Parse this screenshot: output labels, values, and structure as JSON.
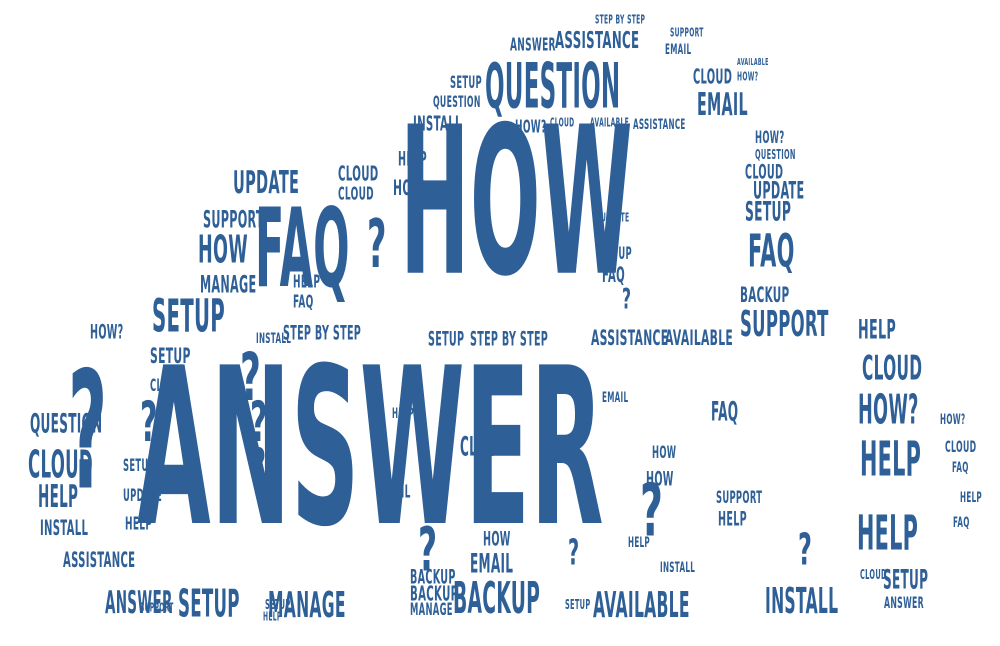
{
  "colors": {
    "text": "#2E5F96",
    "background": "#ffffff"
  },
  "words": [
    {
      "t": "ANSWER"
    },
    {
      "t": "HOW"
    },
    {
      "t": "QUESTION"
    },
    {
      "t": "FAQ"
    },
    {
      "t": "?"
    },
    {
      "t": "?"
    },
    {
      "t": "?"
    },
    {
      "t": "?"
    },
    {
      "t": "?"
    },
    {
      "t": "?"
    },
    {
      "t": "?"
    },
    {
      "t": "?"
    },
    {
      "t": "?"
    },
    {
      "t": "?"
    },
    {
      "t": "?"
    },
    {
      "t": "ASSISTANCE"
    },
    {
      "t": "ANSWER"
    },
    {
      "t": "STEP BY STEP"
    },
    {
      "t": "EMAIL"
    },
    {
      "t": "SUPPORT"
    },
    {
      "t": "EMAIL"
    },
    {
      "t": "CLOUD"
    },
    {
      "t": "HOW?"
    },
    {
      "t": "AVAILABLE"
    },
    {
      "t": "SETUP"
    },
    {
      "t": "QUESTION"
    },
    {
      "t": "INSTALL"
    },
    {
      "t": "HOW?"
    },
    {
      "t": "CLOUD"
    },
    {
      "t": "AVAILABLE"
    },
    {
      "t": "ASSISTANCE"
    },
    {
      "t": "HOW?"
    },
    {
      "t": "QUESTION"
    },
    {
      "t": "CLOUD"
    },
    {
      "t": "HELP"
    },
    {
      "t": "HOW"
    },
    {
      "t": "CLOUD"
    },
    {
      "t": "UPDATE"
    },
    {
      "t": "CLOUD"
    },
    {
      "t": "SETUP"
    },
    {
      "t": "SUPPORT"
    },
    {
      "t": "HOW"
    },
    {
      "t": "UPDATE"
    },
    {
      "t": "MANAGE"
    },
    {
      "t": "SETUP"
    },
    {
      "t": "HELP"
    },
    {
      "t": "FAQ"
    },
    {
      "t": "HOW?"
    },
    {
      "t": "SETUP"
    },
    {
      "t": "INSTALL"
    },
    {
      "t": "STEP BY STEP"
    },
    {
      "t": "SETUP"
    },
    {
      "t": "STEP BY STEP"
    },
    {
      "t": "ASSISTANCE"
    },
    {
      "t": "AVAILABLE"
    },
    {
      "t": "HOW?"
    },
    {
      "t": "UPDATE"
    },
    {
      "t": "SETUP"
    },
    {
      "t": "FAQ"
    },
    {
      "t": "BACKUP"
    },
    {
      "t": "SUPPORT"
    },
    {
      "t": "HELP"
    },
    {
      "t": "CLOUD"
    },
    {
      "t": "HOW?"
    },
    {
      "t": "HELP"
    },
    {
      "t": "HELP"
    },
    {
      "t": "FAQ"
    },
    {
      "t": "QUESTION"
    },
    {
      "t": "CLOUD"
    },
    {
      "t": "HELP"
    },
    {
      "t": "INSTALL"
    },
    {
      "t": "ASSISTANCE"
    },
    {
      "t": "ANSWER"
    },
    {
      "t": "SETUP"
    },
    {
      "t": "MANAGE"
    },
    {
      "t": "BACKUP"
    },
    {
      "t": "AVAILABLE"
    },
    {
      "t": "INSTALL"
    },
    {
      "t": "ANSWER"
    },
    {
      "t": "HELP"
    },
    {
      "t": "SUPPORT"
    },
    {
      "t": "EMAIL"
    },
    {
      "t": "HOW"
    },
    {
      "t": "CLOUD"
    },
    {
      "t": "EMAIL"
    },
    {
      "t": "FAQ"
    },
    {
      "t": "HOW"
    },
    {
      "t": "FAQ"
    },
    {
      "t": "HELP"
    },
    {
      "t": "SETUP"
    },
    {
      "t": "CLOUD"
    },
    {
      "t": "BACKUP"
    },
    {
      "t": "SETUP"
    },
    {
      "t": "UPDATE"
    },
    {
      "t": "HELP"
    },
    {
      "t": "CLOUD"
    },
    {
      "t": "HOW"
    },
    {
      "t": "FAQ"
    },
    {
      "t": "SETUP"
    },
    {
      "t": "MANAGE"
    },
    {
      "t": "BACKUP"
    },
    {
      "t": "SETUP"
    },
    {
      "t": "SUPPORT"
    },
    {
      "t": "HELP"
    },
    {
      "t": "FAQ"
    },
    {
      "t": "CLOUD"
    },
    {
      "t": "HELP"
    },
    {
      "t": "EMAIL"
    },
    {
      "t": "HELP"
    },
    {
      "t": "INSTALL"
    },
    {
      "t": "HOW?"
    }
  ]
}
